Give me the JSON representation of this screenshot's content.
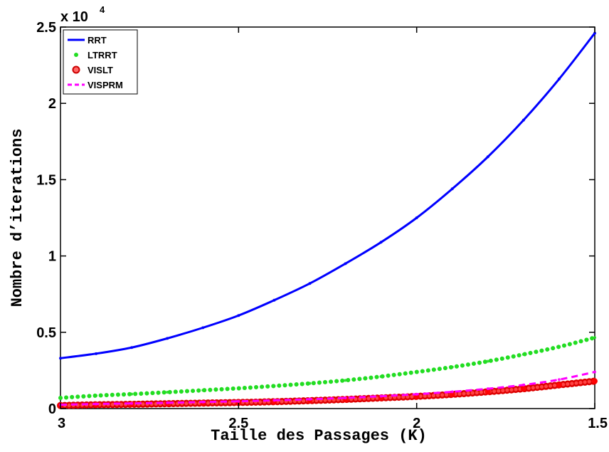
{
  "chart_data": {
    "type": "line",
    "title": "",
    "xlabel": "Taille des Passages (K)",
    "ylabel": "Nombre d’iterations",
    "y_multiplier_label": "x 10",
    "y_multiplier_exp": "4",
    "xlim": [
      3,
      1.5
    ],
    "x_reversed": true,
    "ylim": [
      0,
      2.5
    ],
    "x_ticks": [
      "3",
      "2.5",
      "2",
      "1.5"
    ],
    "y_ticks": [
      "0",
      "0.5",
      "1",
      "1.5",
      "2",
      "2.5"
    ],
    "grid": false,
    "legend_position": "top-left",
    "series": [
      {
        "name": "RRT",
        "color": "#0000ff",
        "style": "solid",
        "x": [
          3.0,
          2.9,
          2.8,
          2.7,
          2.6,
          2.5,
          2.4,
          2.3,
          2.2,
          2.1,
          2.0,
          1.9,
          1.8,
          1.7,
          1.6,
          1.5
        ],
        "y": [
          0.33,
          0.36,
          0.4,
          0.46,
          0.53,
          0.61,
          0.71,
          0.82,
          0.95,
          1.09,
          1.25,
          1.44,
          1.65,
          1.89,
          2.16,
          2.46
        ]
      },
      {
        "name": "LTRRT",
        "color": "#22dd22",
        "style": "dotted",
        "x": [
          3.0,
          2.9,
          2.8,
          2.7,
          2.6,
          2.5,
          2.4,
          2.3,
          2.2,
          2.1,
          2.0,
          1.9,
          1.8,
          1.7,
          1.6,
          1.5
        ],
        "y": [
          0.07,
          0.085,
          0.095,
          0.107,
          0.12,
          0.133,
          0.148,
          0.165,
          0.185,
          0.21,
          0.24,
          0.272,
          0.31,
          0.355,
          0.405,
          0.465
        ]
      },
      {
        "name": "VISLT",
        "color": "#ff0000",
        "style": "circles",
        "x": [
          3.0,
          2.9,
          2.8,
          2.7,
          2.6,
          2.5,
          2.4,
          2.3,
          2.2,
          2.1,
          2.0,
          1.9,
          1.8,
          1.7,
          1.6,
          1.5
        ],
        "y": [
          0.02,
          0.025,
          0.028,
          0.032,
          0.036,
          0.04,
          0.045,
          0.052,
          0.06,
          0.07,
          0.08,
          0.093,
          0.11,
          0.13,
          0.155,
          0.18
        ]
      },
      {
        "name": "VISPRM",
        "color": "#ff00ff",
        "style": "dashed",
        "x": [
          3.0,
          2.9,
          2.8,
          2.7,
          2.6,
          2.5,
          2.4,
          2.3,
          2.2,
          2.1,
          2.0,
          1.9,
          1.8,
          1.7,
          1.6,
          1.5
        ],
        "y": [
          0.025,
          0.03,
          0.034,
          0.038,
          0.043,
          0.048,
          0.054,
          0.061,
          0.07,
          0.081,
          0.094,
          0.11,
          0.13,
          0.155,
          0.19,
          0.24
        ]
      }
    ]
  }
}
